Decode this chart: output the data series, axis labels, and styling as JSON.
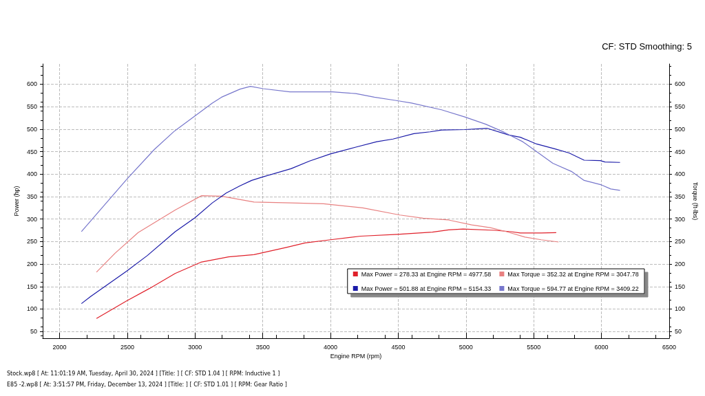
{
  "chart_data": {
    "type": "line",
    "title": "CF: STD Smoothing: 5",
    "xlabel": "Engine RPM (rpm)",
    "ylabel": "Power (hp)",
    "y2label": "Torque (ft-lbs)",
    "xlim": [
      1875,
      6500
    ],
    "xticks": [
      2000,
      2500,
      3000,
      3500,
      4000,
      4500,
      5000,
      5500,
      6000,
      6500
    ],
    "ylim": [
      35,
      645
    ],
    "yticks": [
      50,
      100,
      150,
      200,
      250,
      300,
      350,
      400,
      450,
      500,
      550,
      600
    ],
    "y2lim": [
      35,
      645
    ],
    "y2ticks": [
      50,
      100,
      150,
      200,
      250,
      300,
      350,
      400,
      450,
      500,
      550,
      600
    ],
    "grid": true,
    "legend": "bottom right",
    "marker": "none",
    "line_style": "solid",
    "series": [
      {
        "name": "Max Power = 278.33 at Engine RPM = 4977.58",
        "color": "#e0202a",
        "x": [
          2272,
          2494,
          2665,
          2853,
          3042,
          3247,
          3435,
          3674,
          3811,
          3999,
          4222,
          4495,
          4752,
          4871,
          4978,
          5213,
          5333,
          5401,
          5555,
          5666
        ],
        "values": [
          79,
          118,
          146,
          179,
          204,
          216,
          221,
          237,
          247,
          254,
          262,
          266,
          271,
          276,
          278,
          275,
          272,
          269,
          269,
          270
        ]
      },
      {
        "name": "Max Torque = 352.32 at Engine RPM = 3047.78",
        "color": "#e88080",
        "x": [
          2272,
          2409,
          2580,
          2853,
          3048,
          3195,
          3435,
          3708,
          3948,
          4238,
          4512,
          4683,
          4871,
          5042,
          5179,
          5299,
          5436,
          5555,
          5683
        ],
        "values": [
          182,
          224,
          270,
          320,
          352,
          351,
          338,
          336,
          334,
          325,
          309,
          302,
          298,
          287,
          281,
          272,
          260,
          254,
          249
        ]
      },
      {
        "name": "Max Power = 501.88 at Engine RPM = 5154.33",
        "color": "#1a1aa8",
        "x": [
          2161,
          2229,
          2494,
          2648,
          2853,
          2999,
          3127,
          3230,
          3332,
          3418,
          3503,
          3708,
          3845,
          3999,
          4187,
          4341,
          4461,
          4615,
          4735,
          4820,
          4991,
          5154,
          5316,
          5401,
          5521,
          5658,
          5761,
          5872,
          5992,
          6026,
          6137
        ],
        "values": [
          112,
          128,
          184,
          219,
          272,
          303,
          336,
          358,
          374,
          386,
          394,
          412,
          429,
          445,
          460,
          472,
          478,
          490,
          494,
          498,
          499,
          502,
          487,
          482,
          467,
          456,
          447,
          431,
          430,
          427,
          426
        ]
      },
      {
        "name": "Max Torque = 594.77 at Engine RPM = 3409.22",
        "color": "#7777cc",
        "x": [
          2161,
          2503,
          2700,
          2845,
          3007,
          3127,
          3195,
          3332,
          3409,
          3503,
          3700,
          4016,
          4187,
          4324,
          4478,
          4598,
          4820,
          4991,
          5145,
          5282,
          5419,
          5521,
          5641,
          5778,
          5872,
          6000,
          6069,
          6137
        ],
        "values": [
          272,
          391,
          455,
          495,
          531,
          558,
          571,
          589,
          595,
          590,
          583,
          583,
          579,
          571,
          564,
          558,
          543,
          527,
          511,
          493,
          472,
          450,
          424,
          406,
          386,
          376,
          367,
          364
        ]
      }
    ],
    "annotations": [
      "Stock.wp8 [ At: 11:01:19 AM, Tuesday, April 30, 2024 ] [Title: ]  [ CF: STD 1.04 ] [ RPM: Inductive 1 ]",
      "E85 -2.wp8 [ At: 3:51:57 PM, Friday, December 13, 2024 ] [Title: ]  [ CF: STD 1.01 ] [ RPM: Gear Ratio ]"
    ]
  }
}
